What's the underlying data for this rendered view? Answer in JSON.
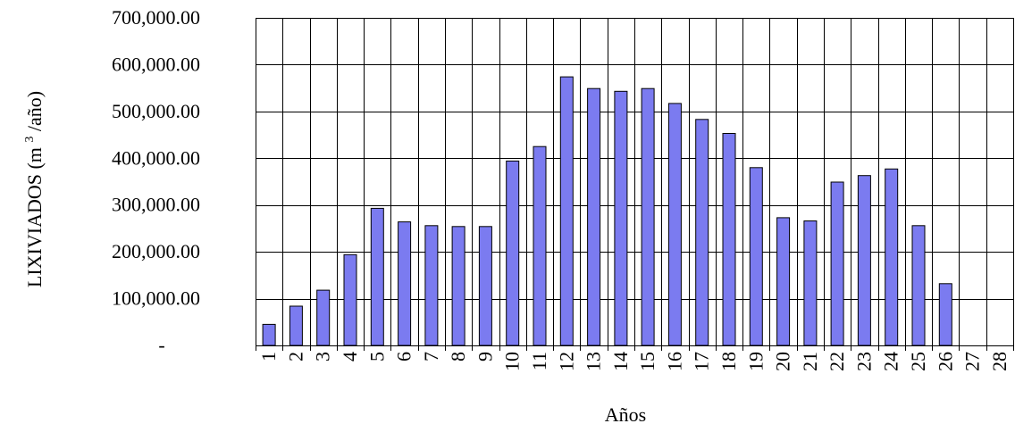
{
  "chart_data": {
    "type": "bar",
    "categories": [
      "1",
      "2",
      "3",
      "4",
      "5",
      "6",
      "7",
      "8",
      "9",
      "10",
      "11",
      "12",
      "13",
      "14",
      "15",
      "16",
      "17",
      "18",
      "19",
      "20",
      "21",
      "22",
      "23",
      "24",
      "25",
      "26",
      "27",
      "28"
    ],
    "values": [
      45000,
      84000,
      118000,
      194000,
      293000,
      264000,
      256000,
      254000,
      254000,
      394000,
      425000,
      574000,
      549000,
      543000,
      549000,
      517000,
      483000,
      453000,
      380000,
      273000,
      266000,
      349000,
      363000,
      377000,
      256000,
      132000,
      0,
      0
    ],
    "xlabel": "Años",
    "ylabel_main": "LIXIVIADOS (m",
    "ylabel_sup": "3",
    "ylabel_tail": "/año)",
    "ylim": [
      0,
      700000
    ],
    "yticks": [
      0,
      100000,
      200000,
      300000,
      400000,
      500000,
      600000,
      700000
    ],
    "ytick_labels": [
      "-",
      "100,000.00",
      "200,000.00",
      "300,000.00",
      "400,000.00",
      "500,000.00",
      "600,000.00",
      "700,000.00"
    ],
    "grid": true,
    "bar_color": "#7b7bf0"
  }
}
